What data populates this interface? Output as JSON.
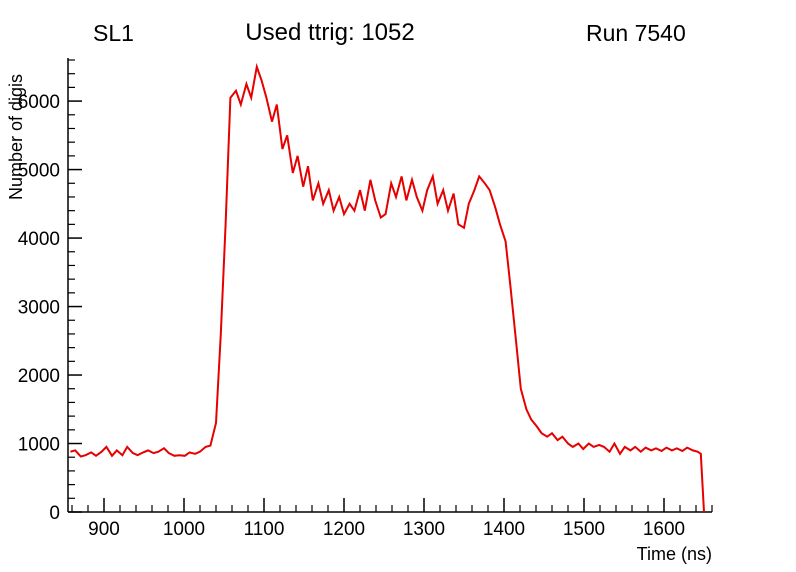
{
  "header": {
    "left_label": "SL1",
    "title": "Used ttrig: 1052",
    "right_label": "Run 7540"
  },
  "chart_data": {
    "type": "line",
    "title": "Used ttrig: 1052",
    "xlabel": "Time (ns)",
    "ylabel": "Number of digis",
    "xlim": [
      855,
      1660
    ],
    "ylim": [
      0,
      6600
    ],
    "x_major_ticks": [
      900,
      1000,
      1100,
      1200,
      1300,
      1400,
      1500,
      1600
    ],
    "x_minor_step": 20,
    "y_major_ticks": [
      0,
      1000,
      2000,
      3000,
      4000,
      5000,
      6000
    ],
    "y_minor_step": 200,
    "grid": false,
    "legend": "none",
    "line_color": "#e60000",
    "axis_color": "#000000",
    "series": [
      {
        "name": "digis-vs-time",
        "points": [
          [
            858,
            880
          ],
          [
            864,
            900
          ],
          [
            871,
            810
          ],
          [
            877,
            830
          ],
          [
            884,
            870
          ],
          [
            890,
            820
          ],
          [
            897,
            880
          ],
          [
            903,
            950
          ],
          [
            910,
            820
          ],
          [
            916,
            900
          ],
          [
            923,
            830
          ],
          [
            929,
            950
          ],
          [
            936,
            860
          ],
          [
            942,
            830
          ],
          [
            949,
            870
          ],
          [
            955,
            900
          ],
          [
            962,
            860
          ],
          [
            968,
            880
          ],
          [
            975,
            930
          ],
          [
            981,
            860
          ],
          [
            988,
            820
          ],
          [
            994,
            830
          ],
          [
            1001,
            820
          ],
          [
            1007,
            870
          ],
          [
            1014,
            850
          ],
          [
            1020,
            880
          ],
          [
            1027,
            950
          ],
          [
            1033,
            970
          ],
          [
            1040,
            1300
          ],
          [
            1046,
            2600
          ],
          [
            1052,
            4200
          ],
          [
            1058,
            6050
          ],
          [
            1065,
            6150
          ],
          [
            1071,
            5950
          ],
          [
            1078,
            6250
          ],
          [
            1084,
            6050
          ],
          [
            1091,
            6500
          ],
          [
            1097,
            6300
          ],
          [
            1103,
            6050
          ],
          [
            1110,
            5700
          ],
          [
            1116,
            5950
          ],
          [
            1123,
            5300
          ],
          [
            1129,
            5500
          ],
          [
            1136,
            4950
          ],
          [
            1142,
            5200
          ],
          [
            1149,
            4750
          ],
          [
            1155,
            5050
          ],
          [
            1161,
            4550
          ],
          [
            1168,
            4800
          ],
          [
            1174,
            4500
          ],
          [
            1181,
            4700
          ],
          [
            1187,
            4400
          ],
          [
            1194,
            4600
          ],
          [
            1200,
            4350
          ],
          [
            1207,
            4500
          ],
          [
            1213,
            4400
          ],
          [
            1220,
            4700
          ],
          [
            1226,
            4400
          ],
          [
            1233,
            4850
          ],
          [
            1239,
            4550
          ],
          [
            1246,
            4300
          ],
          [
            1252,
            4350
          ],
          [
            1259,
            4800
          ],
          [
            1265,
            4600
          ],
          [
            1272,
            4900
          ],
          [
            1278,
            4550
          ],
          [
            1285,
            4850
          ],
          [
            1291,
            4600
          ],
          [
            1298,
            4400
          ],
          [
            1304,
            4700
          ],
          [
            1311,
            4900
          ],
          [
            1317,
            4500
          ],
          [
            1324,
            4700
          ],
          [
            1330,
            4400
          ],
          [
            1337,
            4650
          ],
          [
            1343,
            4200
          ],
          [
            1350,
            4150
          ],
          [
            1356,
            4500
          ],
          [
            1363,
            4700
          ],
          [
            1369,
            4900
          ],
          [
            1376,
            4800
          ],
          [
            1382,
            4700
          ],
          [
            1389,
            4450
          ],
          [
            1395,
            4200
          ],
          [
            1402,
            3950
          ],
          [
            1408,
            3300
          ],
          [
            1415,
            2500
          ],
          [
            1421,
            1800
          ],
          [
            1428,
            1500
          ],
          [
            1434,
            1350
          ],
          [
            1441,
            1250
          ],
          [
            1447,
            1150
          ],
          [
            1454,
            1100
          ],
          [
            1460,
            1150
          ],
          [
            1467,
            1050
          ],
          [
            1473,
            1100
          ],
          [
            1480,
            1000
          ],
          [
            1486,
            950
          ],
          [
            1493,
            1000
          ],
          [
            1499,
            920
          ],
          [
            1506,
            1000
          ],
          [
            1512,
            950
          ],
          [
            1519,
            980
          ],
          [
            1525,
            950
          ],
          [
            1532,
            880
          ],
          [
            1538,
            1000
          ],
          [
            1545,
            850
          ],
          [
            1551,
            950
          ],
          [
            1558,
            900
          ],
          [
            1564,
            950
          ],
          [
            1571,
            880
          ],
          [
            1577,
            940
          ],
          [
            1584,
            900
          ],
          [
            1590,
            930
          ],
          [
            1597,
            890
          ],
          [
            1603,
            940
          ],
          [
            1610,
            900
          ],
          [
            1616,
            930
          ],
          [
            1623,
            890
          ],
          [
            1629,
            940
          ],
          [
            1636,
            900
          ],
          [
            1642,
            880
          ],
          [
            1646,
            850
          ],
          [
            1650,
            0
          ]
        ]
      }
    ]
  }
}
